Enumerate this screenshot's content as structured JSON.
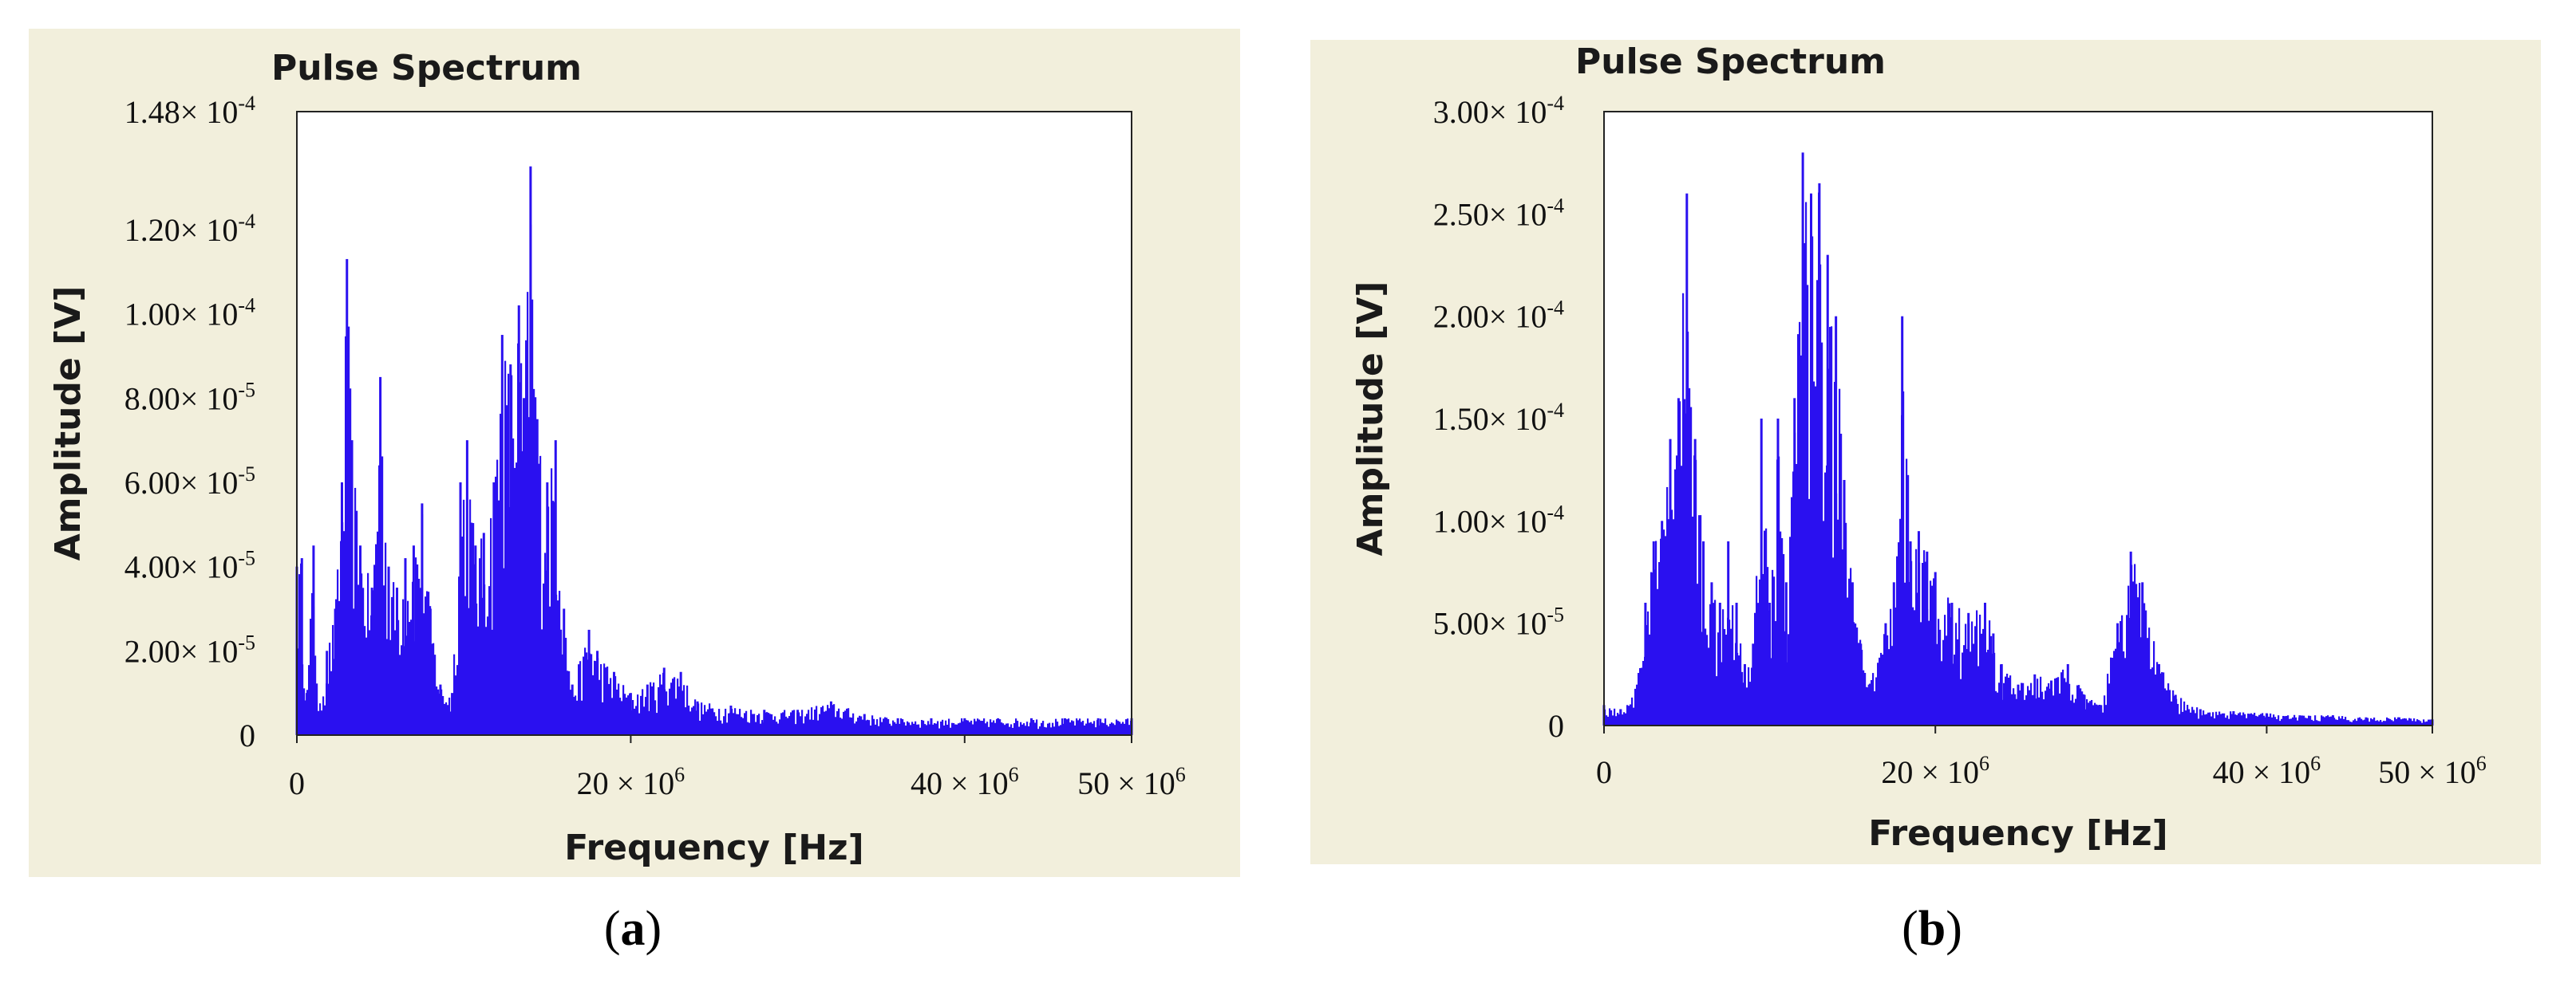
{
  "chart_data": [
    {
      "id": "a",
      "type": "bar",
      "title": "Pulse Spectrum",
      "xlabel": "Frequency [Hz]",
      "ylabel": "Amplitude [V]",
      "caption": "a",
      "color": "#2a10f0",
      "background": "#f2efdc",
      "xlim": [
        0,
        50000000
      ],
      "ylim": [
        0,
        0.000148
      ],
      "x_ticks": [
        {
          "value": 0,
          "mant": "0",
          "exp": ""
        },
        {
          "value": 20000000,
          "mant": "20 × 10",
          "exp": "6"
        },
        {
          "value": 40000000,
          "mant": "40 × 10",
          "exp": "6"
        },
        {
          "value": 50000000,
          "mant": "50 × 10",
          "exp": "6"
        }
      ],
      "y_ticks": [
        {
          "value": 0,
          "mant": "0",
          "exp": ""
        },
        {
          "value": 2e-05,
          "mant": "2.00× 10",
          "exp": "-5"
        },
        {
          "value": 4e-05,
          "mant": "4.00× 10",
          "exp": "-5"
        },
        {
          "value": 6e-05,
          "mant": "6.00× 10",
          "exp": "-5"
        },
        {
          "value": 8e-05,
          "mant": "8.00× 10",
          "exp": "-5"
        },
        {
          "value": 0.0001,
          "mant": "1.00× 10",
          "exp": "-4"
        },
        {
          "value": 0.00012,
          "mant": "1.20× 10",
          "exp": "-4"
        },
        {
          "value": 0.000148,
          "mant": "1.48× 10",
          "exp": "-4"
        }
      ],
      "envelope_MHz_vs_amplitude": [
        [
          0,
          4e-05
        ],
        [
          0.3,
          4.2e-05
        ],
        [
          0.6,
          1e-05
        ],
        [
          1.0,
          4.5e-05
        ],
        [
          1.3,
          5e-06
        ],
        [
          1.8,
          2e-05
        ],
        [
          2.3,
          3e-05
        ],
        [
          2.7,
          6e-05
        ],
        [
          3.0,
          0.000113
        ],
        [
          3.3,
          7e-05
        ],
        [
          3.8,
          4.5e-05
        ],
        [
          4.5,
          3.5e-05
        ],
        [
          5.0,
          8.5e-05
        ],
        [
          5.5,
          4e-05
        ],
        [
          6.0,
          3.5e-05
        ],
        [
          6.5,
          4.2e-05
        ],
        [
          7.0,
          4.5e-05
        ],
        [
          7.5,
          5.5e-05
        ],
        [
          8.0,
          3e-05
        ],
        [
          8.6,
          1.2e-05
        ],
        [
          9.3,
          1e-05
        ],
        [
          9.8,
          6e-05
        ],
        [
          10.2,
          7e-05
        ],
        [
          10.7,
          4.5e-05
        ],
        [
          11.2,
          4.8e-05
        ],
        [
          11.8,
          6e-05
        ],
        [
          12.3,
          9.5e-05
        ],
        [
          12.8,
          8.8e-05
        ],
        [
          13.3,
          0.000102
        ],
        [
          13.6,
          8e-05
        ],
        [
          14.0,
          0.000135
        ],
        [
          14.4,
          7.5e-05
        ],
        [
          15.0,
          6e-05
        ],
        [
          15.5,
          7e-05
        ],
        [
          16.0,
          3e-05
        ],
        [
          16.5,
          1.2e-05
        ],
        [
          17.5,
          2.5e-05
        ],
        [
          18.0,
          2e-05
        ],
        [
          19.0,
          1.5e-05
        ],
        [
          20.0,
          1e-05
        ],
        [
          21.0,
          1.2e-05
        ],
        [
          22.0,
          1.6e-05
        ],
        [
          23.0,
          1.5e-05
        ],
        [
          24.0,
          8e-06
        ],
        [
          26.0,
          7e-06
        ],
        [
          28.0,
          6e-06
        ],
        [
          30.0,
          6e-06
        ],
        [
          32.0,
          8e-06
        ],
        [
          34.0,
          5e-06
        ],
        [
          36.0,
          4e-06
        ],
        [
          38.0,
          4e-06
        ],
        [
          40.0,
          4e-06
        ],
        [
          42.0,
          4e-06
        ],
        [
          44.0,
          4e-06
        ],
        [
          46.0,
          4e-06
        ],
        [
          48.0,
          4e-06
        ],
        [
          50.0,
          4e-06
        ]
      ]
    },
    {
      "id": "b",
      "type": "bar",
      "title": "Pulse Spectrum",
      "xlabel": "Frequency [Hz]",
      "ylabel": "Amplitude [V]",
      "caption": "b",
      "color": "#2a10f0",
      "background": "#f2efdc",
      "xlim": [
        0,
        50000000
      ],
      "ylim": [
        0,
        0.0003
      ],
      "x_ticks": [
        {
          "value": 0,
          "mant": "0",
          "exp": ""
        },
        {
          "value": 20000000,
          "mant": "20 × 10",
          "exp": "6"
        },
        {
          "value": 40000000,
          "mant": "40 × 10",
          "exp": "6"
        },
        {
          "value": 50000000,
          "mant": "50 × 10",
          "exp": "6"
        }
      ],
      "y_ticks": [
        {
          "value": 0,
          "mant": "0",
          "exp": ""
        },
        {
          "value": 5e-05,
          "mant": "5.00× 10",
          "exp": "-5"
        },
        {
          "value": 0.0001,
          "mant": "1.00× 10",
          "exp": "-4"
        },
        {
          "value": 0.00015,
          "mant": "1.50× 10",
          "exp": "-4"
        },
        {
          "value": 0.0002,
          "mant": "2.00× 10",
          "exp": "-4"
        },
        {
          "value": 0.00025,
          "mant": "2.50× 10",
          "exp": "-4"
        },
        {
          "value": 0.0003,
          "mant": "3.00× 10",
          "exp": "-4"
        }
      ],
      "envelope_MHz_vs_amplitude": [
        [
          0,
          1e-05
        ],
        [
          1.0,
          8e-06
        ],
        [
          2.0,
          2e-05
        ],
        [
          2.5,
          6e-05
        ],
        [
          3.0,
          9e-05
        ],
        [
          3.5,
          0.0001
        ],
        [
          4.0,
          0.00014
        ],
        [
          4.5,
          0.00016
        ],
        [
          5.0,
          0.00026
        ],
        [
          5.5,
          0.00014
        ],
        [
          6.0,
          9e-05
        ],
        [
          6.5,
          7e-05
        ],
        [
          7.0,
          6e-05
        ],
        [
          7.5,
          9e-05
        ],
        [
          8.0,
          6e-05
        ],
        [
          8.5,
          3e-05
        ],
        [
          9.0,
          4e-05
        ],
        [
          9.5,
          0.00015
        ],
        [
          10.0,
          6e-05
        ],
        [
          10.5,
          0.00015
        ],
        [
          11.0,
          7e-05
        ],
        [
          11.5,
          0.00016
        ],
        [
          12.0,
          0.00028
        ],
        [
          12.5,
          0.00026
        ],
        [
          13.0,
          0.000265
        ],
        [
          13.5,
          0.00023
        ],
        [
          14.0,
          0.0002
        ],
        [
          14.5,
          0.00012
        ],
        [
          15.0,
          7e-05
        ],
        [
          15.5,
          4e-05
        ],
        [
          16.0,
          2e-05
        ],
        [
          17.0,
          5e-05
        ],
        [
          17.5,
          7e-05
        ],
        [
          18.0,
          0.0002
        ],
        [
          18.5,
          9e-05
        ],
        [
          19.0,
          9.5e-05
        ],
        [
          19.5,
          8.5e-05
        ],
        [
          20.0,
          7.5e-05
        ],
        [
          21.0,
          6e-05
        ],
        [
          22.0,
          5.5e-05
        ],
        [
          23.0,
          6e-05
        ],
        [
          23.5,
          4.5e-05
        ],
        [
          24.0,
          3e-05
        ],
        [
          25.0,
          2e-05
        ],
        [
          26.0,
          2.5e-05
        ],
        [
          27.0,
          2.2e-05
        ],
        [
          28.0,
          3e-05
        ],
        [
          29.0,
          1.5e-05
        ],
        [
          30.0,
          1e-05
        ],
        [
          31.0,
          5e-05
        ],
        [
          31.8,
          8.5e-05
        ],
        [
          32.5,
          7e-05
        ],
        [
          33.5,
          3e-05
        ],
        [
          34.5,
          1.5e-05
        ],
        [
          36.0,
          8e-06
        ],
        [
          38.0,
          7e-06
        ],
        [
          40.0,
          6e-06
        ],
        [
          42.0,
          5e-06
        ],
        [
          44.0,
          5e-06
        ],
        [
          46.0,
          4e-06
        ],
        [
          48.0,
          4e-06
        ],
        [
          50.0,
          3e-06
        ]
      ]
    }
  ]
}
